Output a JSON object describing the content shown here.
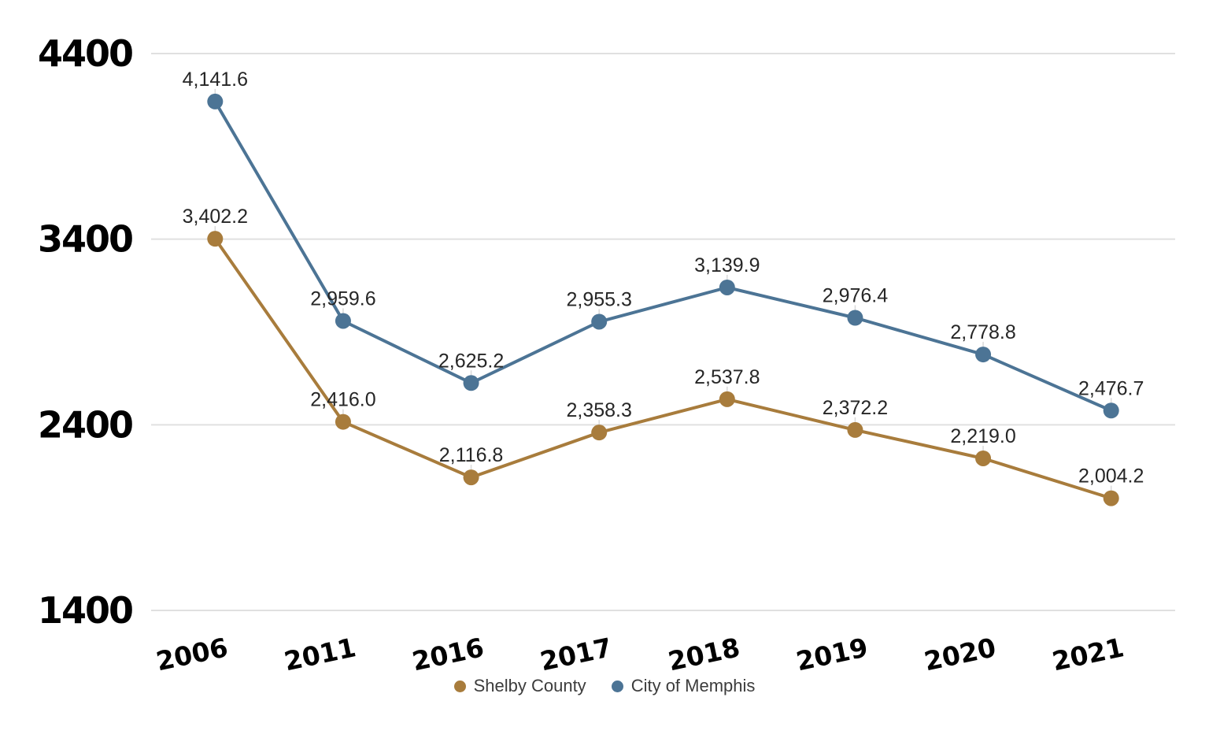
{
  "chart_data": {
    "type": "line",
    "categories": [
      "2006",
      "2011",
      "2016",
      "2017",
      "2018",
      "2019",
      "2020",
      "2021"
    ],
    "series": [
      {
        "name": "Shelby County",
        "color": "#a87c3c",
        "values": [
          3402.2,
          2416.0,
          2116.8,
          2358.3,
          2537.8,
          2372.2,
          2219.0,
          2004.2
        ],
        "labels": [
          "3,402.2",
          "2,416.0",
          "2,116.8",
          "2,358.3",
          "2,537.8",
          "2,372.2",
          "2,219.0",
          "2,004.2"
        ]
      },
      {
        "name": "City of Memphis",
        "color": "#4c7495",
        "values": [
          4141.6,
          2959.6,
          2625.2,
          2955.3,
          3139.9,
          2976.4,
          2778.8,
          2476.7
        ],
        "labels": [
          "4,141.6",
          "2,959.6",
          "2,625.2",
          "2,955.3",
          "3,139.9",
          "2,976.4",
          "2,778.8",
          "2,476.7"
        ]
      }
    ],
    "yticks": [
      4400,
      3400,
      2400,
      1400
    ],
    "ylim": [
      1400,
      4400
    ],
    "grid": true,
    "legend_position": "bottom"
  },
  "colors": {
    "shelby_county": "#a87c3c",
    "city_of_memphis": "#4c7495",
    "gridline": "#e0e0e0",
    "leader_line": "#d9d9d9",
    "data_label": "#262626",
    "axis_tick_label": "#000000",
    "legend_text": "#3c3c3c",
    "background": "#ffffff"
  }
}
